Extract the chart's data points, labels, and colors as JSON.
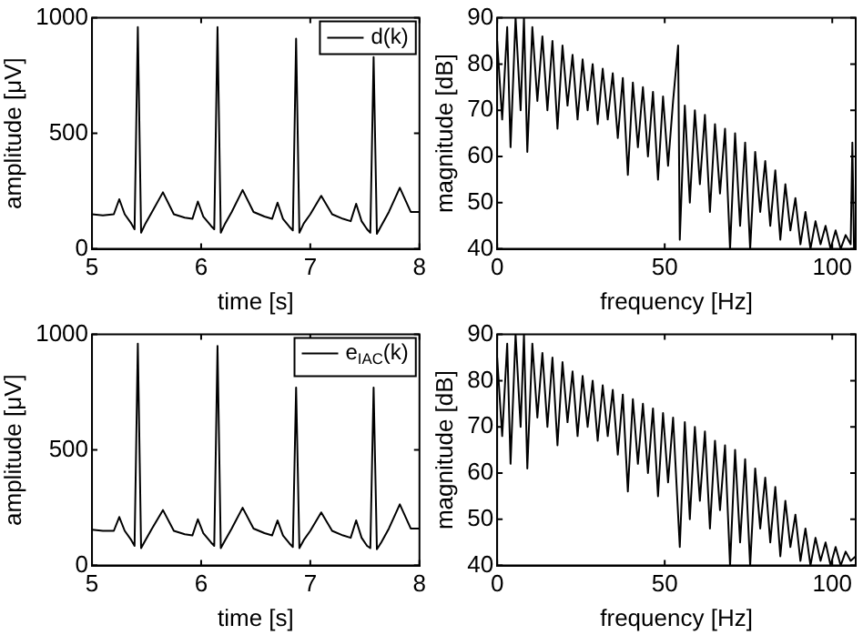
{
  "chart_data": [
    {
      "type": "line",
      "xlabel": "time [s]",
      "ylabel": "amplitude [μV]",
      "xlim": [
        5,
        8
      ],
      "xticks": [
        5,
        6,
        7,
        8
      ],
      "ylim": [
        0,
        1000
      ],
      "yticks": [
        0,
        500,
        1000
      ],
      "grid": false,
      "legend": "top right",
      "x": [
        5.0,
        5.1,
        5.2,
        5.25,
        5.3,
        5.36,
        5.39,
        5.42,
        5.45,
        5.49,
        5.55,
        5.65,
        5.75,
        5.85,
        5.92,
        5.97,
        6.02,
        6.09,
        6.12,
        6.15,
        6.18,
        6.22,
        6.28,
        6.38,
        6.48,
        6.58,
        6.65,
        6.7,
        6.75,
        6.81,
        6.84,
        6.87,
        6.9,
        6.94,
        7.0,
        7.1,
        7.2,
        7.3,
        7.37,
        7.42,
        7.47,
        7.52,
        7.55,
        7.58,
        7.61,
        7.65,
        7.72,
        7.82,
        7.92,
        8.0
      ],
      "series": [
        {
          "name": "d(k)",
          "color": "#000000",
          "values": [
            150,
            145,
            150,
            215,
            150,
            110,
            85,
            960,
            70,
            110,
            160,
            245,
            150,
            135,
            130,
            205,
            140,
            100,
            85,
            960,
            70,
            110,
            160,
            255,
            160,
            140,
            130,
            200,
            130,
            95,
            80,
            910,
            70,
            110,
            150,
            230,
            150,
            130,
            120,
            195,
            120,
            85,
            70,
            830,
            65,
            100,
            160,
            265,
            160,
            160
          ]
        }
      ]
    },
    {
      "type": "line",
      "xlabel": "frequency [Hz]",
      "ylabel": "magnitude [dB]",
      "xlim": [
        0,
        107
      ],
      "xticks": [
        0,
        50,
        100
      ],
      "ylim": [
        40,
        90
      ],
      "yticks": [
        40,
        50,
        60,
        70,
        80,
        90
      ],
      "grid": false,
      "x": [
        0,
        1.5,
        3,
        4,
        5.5,
        7,
        8,
        9,
        10.5,
        12,
        13.5,
        15,
        16.5,
        18,
        19.5,
        21,
        22.5,
        24,
        25.5,
        27,
        28.5,
        30,
        31.5,
        33,
        34.5,
        36,
        37.5,
        39,
        40.5,
        42,
        43.5,
        45,
        46.5,
        48,
        49.5,
        51,
        52.5,
        54,
        54.5,
        56,
        57.5,
        59,
        60.5,
        62,
        63.5,
        65,
        66.5,
        68,
        69.5,
        71,
        72.5,
        74,
        75.5,
        77,
        78.5,
        80,
        81.5,
        83,
        84.5,
        86,
        87.5,
        89,
        90.5,
        92,
        93.5,
        95,
        96.5,
        98,
        99.5,
        101,
        102.5,
        104,
        105.5,
        106,
        106.5,
        107
      ],
      "series": [
        {
          "color": "#000000",
          "values": [
            85,
            68,
            88,
            62,
            90,
            70,
            90,
            61,
            88,
            72,
            86,
            70,
            85,
            66,
            84,
            71,
            82,
            68,
            81,
            70,
            80,
            67,
            79,
            68,
            78,
            64,
            77,
            56,
            76,
            62,
            75,
            60,
            74,
            55,
            73,
            58,
            72,
            84,
            42,
            71,
            50,
            70,
            54,
            69,
            48,
            67,
            52,
            66,
            40,
            65,
            45,
            63,
            40,
            61,
            48,
            59,
            45,
            57,
            42,
            54,
            44,
            51,
            41,
            48,
            40,
            46,
            41,
            45,
            40,
            44,
            40,
            43,
            41,
            63,
            40,
            42
          ]
        }
      ]
    },
    {
      "type": "line",
      "xlabel": "time [s]",
      "ylabel": "amplitude [μV]",
      "xlim": [
        5,
        8
      ],
      "xticks": [
        5,
        6,
        7,
        8
      ],
      "ylim": [
        0,
        1000
      ],
      "yticks": [
        0,
        500,
        1000
      ],
      "grid": false,
      "legend": "top right",
      "x": [
        5.0,
        5.1,
        5.2,
        5.25,
        5.3,
        5.36,
        5.39,
        5.42,
        5.45,
        5.49,
        5.55,
        5.65,
        5.75,
        5.85,
        5.92,
        5.97,
        6.02,
        6.09,
        6.12,
        6.15,
        6.18,
        6.22,
        6.28,
        6.38,
        6.48,
        6.58,
        6.65,
        6.7,
        6.75,
        6.81,
        6.84,
        6.87,
        6.9,
        6.94,
        7.0,
        7.1,
        7.2,
        7.3,
        7.37,
        7.42,
        7.47,
        7.52,
        7.55,
        7.58,
        7.61,
        7.65,
        7.72,
        7.82,
        7.92,
        8.0
      ],
      "series": [
        {
          "name": "e$_{IAC}$(k)",
          "color": "#000000",
          "values": [
            155,
            150,
            150,
            210,
            150,
            110,
            85,
            960,
            75,
            110,
            160,
            240,
            150,
            135,
            130,
            200,
            140,
            100,
            85,
            950,
            75,
            110,
            160,
            250,
            160,
            140,
            130,
            195,
            130,
            95,
            80,
            770,
            75,
            110,
            150,
            230,
            150,
            130,
            120,
            195,
            120,
            85,
            75,
            770,
            70,
            100,
            160,
            265,
            160,
            160
          ]
        }
      ]
    },
    {
      "type": "line",
      "xlabel": "frequency [Hz]",
      "ylabel": "magnitude [dB]",
      "xlim": [
        0,
        107
      ],
      "xticks": [
        0,
        50,
        100
      ],
      "ylim": [
        40,
        90
      ],
      "yticks": [
        40,
        50,
        60,
        70,
        80,
        90
      ],
      "grid": false,
      "x": [
        0,
        1.5,
        3,
        4,
        5.5,
        7,
        8,
        9,
        10.5,
        12,
        13.5,
        15,
        16.5,
        18,
        19.5,
        21,
        22.5,
        24,
        25.5,
        27,
        28.5,
        30,
        31.5,
        33,
        34.5,
        36,
        37.5,
        39,
        40.5,
        42,
        43.5,
        45,
        46.5,
        48,
        49.5,
        51,
        52.5,
        54.5,
        56,
        57.5,
        59,
        60.5,
        62,
        63.5,
        65,
        66.5,
        68,
        69.5,
        71,
        72.5,
        74,
        75.5,
        77,
        78.5,
        80,
        81.5,
        83,
        84.5,
        86,
        87.5,
        89,
        90.5,
        92,
        93.5,
        95,
        96.5,
        98,
        99.5,
        101,
        102.5,
        104,
        105.5,
        107
      ],
      "series": [
        {
          "color": "#000000",
          "values": [
            85,
            68,
            88,
            62,
            90,
            70,
            90,
            61,
            88,
            72,
            86,
            70,
            85,
            66,
            84,
            71,
            82,
            68,
            81,
            70,
            80,
            67,
            79,
            68,
            78,
            64,
            77,
            56,
            76,
            62,
            75,
            60,
            74,
            55,
            73,
            58,
            72,
            44,
            71,
            50,
            70,
            54,
            69,
            48,
            67,
            52,
            66,
            40,
            65,
            45,
            63,
            40,
            61,
            48,
            59,
            45,
            57,
            42,
            54,
            44,
            51,
            41,
            48,
            40,
            46,
            41,
            45,
            40,
            44,
            40,
            43,
            41,
            42
          ]
        }
      ]
    }
  ]
}
